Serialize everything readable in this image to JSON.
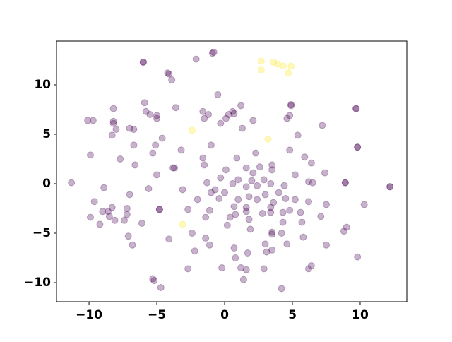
{
  "chart_data": {
    "type": "scatter",
    "xlim": [
      -12.4,
      13.44
    ],
    "ylim": [
      -11.93,
      14.43
    ],
    "xticks": [
      {
        "value": -10,
        "label": "−10"
      },
      {
        "value": -5,
        "label": "−5"
      },
      0,
      5,
      10
    ],
    "yticks": [
      {
        "value": -10,
        "label": "−10"
      },
      {
        "value": -5,
        "label": "−5"
      },
      0,
      5,
      10
    ],
    "alpha": 0.3,
    "series": [
      {
        "color": "#440154",
        "x": [
          -0.9,
          -0.8,
          -6.0,
          -6.0,
          -2.1,
          -4.2,
          -4.1,
          -3.9,
          -0.5,
          -5.9,
          4.9,
          4.9,
          9.7,
          9.7,
          -8.2,
          -3.6,
          1.2,
          -1.6,
          0.6,
          0.7,
          -5.8,
          -5.5,
          -5.0,
          -1.2,
          0.1,
          -1.5,
          0.3,
          2.1,
          4.6,
          4.8,
          -10.1,
          -9.7,
          -8.2,
          -8.2,
          -5.0,
          -0.3,
          1.3,
          -7.0,
          -6.7,
          -8.0,
          7.2,
          5.4,
          -8.3,
          -4.6,
          -6.7,
          -5.1,
          -1.0,
          4.8,
          -3.2,
          -5.3,
          2.3,
          -7.7,
          -1.6,
          0.9,
          5.9,
          -9.9,
          6.4,
          3.5,
          -1.5,
          -6.6,
          -3.8,
          -3.7,
          1.6,
          2.6,
          3.5,
          7.4,
          0.1,
          2.1,
          -5.0,
          5.2,
          -0.3,
          1.0,
          2.9,
          -1.3,
          2.0,
          -11.3,
          8.9,
          8.9,
          12.2,
          12.2,
          6.2,
          6.5,
          0.6,
          3.4,
          4.4,
          -8.9,
          -5.6,
          -3.1,
          -0.7,
          1.6,
          2.4,
          0.0,
          4.0,
          3.0,
          -7.0,
          1.8,
          1.0,
          4.5,
          5.2,
          6.2,
          -2.0,
          -1.0,
          -0.4,
          -9.6,
          3.6,
          2.4,
          7.5,
          10.3,
          -2.7,
          -4.8,
          -4.8,
          0.7,
          1.6,
          3.4,
          4.8,
          -1.1,
          -8.3,
          -8.6,
          -9.0,
          -7.2,
          1.6,
          2.8,
          3.4,
          4.3,
          5.6,
          7.1,
          -9.9,
          -7.2,
          -8.5,
          0.8,
          -1.4,
          0.4,
          1.8,
          5.7,
          4.3,
          -9.2,
          -8.1,
          -7.4,
          -6.1,
          0.2,
          9.0,
          8.8,
          1.9,
          3.5,
          3.5,
          4.2,
          -2.4,
          -7.1,
          -1.4,
          5.8,
          -4.1,
          3.0,
          4.6,
          -6.8,
          -1.1,
          7.5,
          0.7,
          -2.2,
          3.5,
          3.1,
          1.7,
          9.8,
          0.8,
          6.4,
          6.2,
          -2.7,
          -0.2,
          1.2,
          1.6,
          2.9,
          -5.3,
          -5.2,
          1.4,
          -4.7,
          4.2,
          9.8,
          9.8
        ],
        "y": [
          13.2,
          13.3,
          12.3,
          12.3,
          12.6,
          11.2,
          11.1,
          10.5,
          9.0,
          8.2,
          8.0,
          7.9,
          7.6,
          7.6,
          7.6,
          7.7,
          7.9,
          7.3,
          7.3,
          7.1,
          7.3,
          7.0,
          6.9,
          7.0,
          6.6,
          6.6,
          7.0,
          6.4,
          6.6,
          6.9,
          6.4,
          6.4,
          6.3,
          6.1,
          6.6,
          6.1,
          5.6,
          5.6,
          5.5,
          5.5,
          5.9,
          4.9,
          4.9,
          4.6,
          3.9,
          3.9,
          3.9,
          3.4,
          3.4,
          3.1,
          3.1,
          2.5,
          2.6,
          2.6,
          2.7,
          2.9,
          2.1,
          1.9,
          1.9,
          1.9,
          1.6,
          1.6,
          1.6,
          1.7,
          1.4,
          1.1,
          1.4,
          1.1,
          0.9,
          0.9,
          0.6,
          0.4,
          0.4,
          0.1,
          0.3,
          0.1,
          0.1,
          0.1,
          -0.3,
          -0.3,
          0.2,
          0.1,
          0.0,
          0.0,
          -0.2,
          -0.4,
          -0.5,
          -0.6,
          -0.6,
          -0.3,
          -0.2,
          -0.9,
          -0.9,
          -1.1,
          -1.1,
          -1.3,
          -1.6,
          -1.5,
          -1.6,
          -1.8,
          -1.6,
          -0.9,
          -1.5,
          -1.8,
          -1.9,
          -1.6,
          -2.1,
          -2.1,
          -2.6,
          -2.6,
          -2.6,
          -2.3,
          -2.4,
          -2.4,
          -2.7,
          -2.7,
          -2.4,
          -2.8,
          -2.8,
          -2.5,
          -2.8,
          -3.0,
          -2.9,
          -2.9,
          -2.9,
          -3.3,
          -3.4,
          -3.1,
          -3.3,
          -3.1,
          -3.4,
          -3.4,
          -3.6,
          -3.9,
          -3.9,
          -4.1,
          -3.7,
          -3.7,
          -4.0,
          -4.2,
          -4.4,
          -4.8,
          -4.6,
          -5.1,
          -4.9,
          -5.0,
          -5.0,
          -5.3,
          -5.5,
          -5.4,
          -5.6,
          -6.1,
          -6.1,
          -6.2,
          -6.2,
          -6.2,
          -6.5,
          -6.8,
          -6.7,
          -6.9,
          -7.0,
          -7.4,
          -7.5,
          -8.3,
          -8.6,
          -8.6,
          -8.5,
          -8.5,
          -8.7,
          -8.6,
          -9.6,
          -9.8,
          -9.7,
          -10.5,
          -10.6,
          3.7,
          3.7
        ]
      },
      {
        "color": "#fde725",
        "x": [
          2.7,
          3.6,
          3.9,
          4.3,
          4.9,
          4.7,
          2.7,
          -2.4,
          3.2,
          -3.1
        ],
        "y": [
          12.4,
          12.3,
          12.1,
          11.9,
          11.9,
          11.2,
          11.5,
          5.4,
          4.5,
          -4.1
        ]
      }
    ]
  }
}
